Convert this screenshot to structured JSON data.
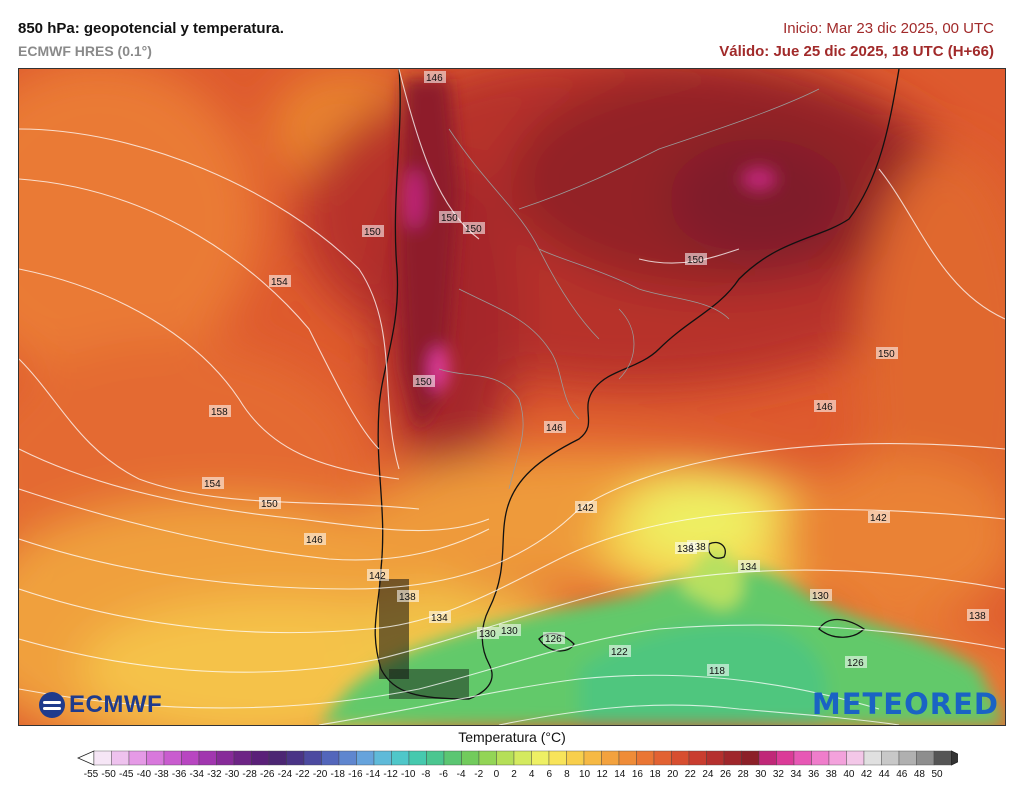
{
  "header": {
    "title": "850 hPa: geopotencial y temperatura.",
    "model": "ECMWF HRES (0.1°)",
    "init": "Inicio: Mar 23 dic 2025, 00 UTC",
    "valid": "Válido: Jue 25 dic 2025, 18 UTC (H+66)"
  },
  "logos": {
    "left": "ECMWF",
    "right": "METEORED"
  },
  "colorbar": {
    "title": "Temperatura (°C)",
    "labels": [
      "-55",
      "-50",
      "-45",
      "-40",
      "-38",
      "-36",
      "-34",
      "-32",
      "-30",
      "-28",
      "-26",
      "-24",
      "-22",
      "-20",
      "-18",
      "-16",
      "-14",
      "-12",
      "-10",
      "-8",
      "-6",
      "-4",
      "-2",
      "0",
      "2",
      "4",
      "6",
      "8",
      "10",
      "12",
      "14",
      "16",
      "18",
      "20",
      "22",
      "24",
      "26",
      "28",
      "30",
      "32",
      "34",
      "36",
      "38",
      "40",
      "42",
      "44",
      "46",
      "48",
      "50"
    ],
    "colors": [
      "#f6e6f6",
      "#eec2ee",
      "#e59ae6",
      "#d878dc",
      "#c95ccf",
      "#b846c1",
      "#a136af",
      "#872b99",
      "#6d2485",
      "#5a2078",
      "#4c2673",
      "#4a3486",
      "#4c4aa0",
      "#5366bb",
      "#5f86cf",
      "#66a3dc",
      "#5fbad9",
      "#4fc7c9",
      "#46c9ae",
      "#4bc690",
      "#5bc672",
      "#72cb5c",
      "#93d556",
      "#b5df58",
      "#d4ea5f",
      "#eef064",
      "#f8e45a",
      "#f8cf4c",
      "#f6b944",
      "#f3a23e",
      "#ef8c38",
      "#ea7634",
      "#e26232",
      "#d74e30",
      "#c93d2f",
      "#b5302e",
      "#9f262b",
      "#8c2028",
      "#c02878",
      "#db3b98",
      "#e758b5",
      "#ef7dcb",
      "#f3a2dc",
      "#f3c7e8",
      "#e0e0e0",
      "#c8c8c8",
      "#b0b0b0",
      "#8e8e8e",
      "#555555"
    ]
  },
  "isobar_labels": [
    {
      "text": "146"
    },
    {
      "text": "150"
    },
    {
      "text": "154"
    },
    {
      "text": "158"
    },
    {
      "text": "154"
    },
    {
      "text": "150"
    },
    {
      "text": "146"
    },
    {
      "text": "142"
    },
    {
      "text": "138"
    },
    {
      "text": "134"
    },
    {
      "text": "130"
    },
    {
      "text": "126"
    },
    {
      "text": "122"
    },
    {
      "text": "118"
    },
    {
      "text": "126"
    },
    {
      "text": "130"
    },
    {
      "text": "134"
    },
    {
      "text": "138"
    },
    {
      "text": "142"
    },
    {
      "text": "138"
    },
    {
      "text": "146"
    },
    {
      "text": "146"
    },
    {
      "text": "150"
    },
    {
      "text": "150"
    },
    {
      "text": "150"
    },
    {
      "text": "150"
    },
    {
      "text": "142"
    },
    {
      "text": "130"
    },
    {
      "text": "138"
    },
    {
      "text": "150"
    }
  ]
}
